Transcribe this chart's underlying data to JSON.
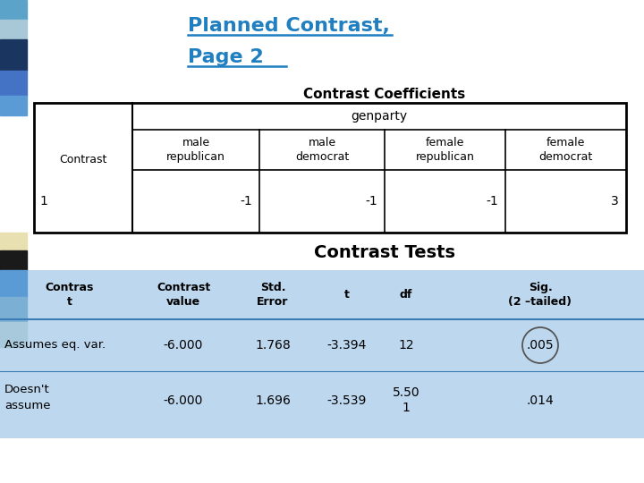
{
  "title_line1": "Planned Contrast,",
  "title_line2": "Page 2",
  "title_color": "#1F7FC0",
  "bg_color": "#FFFFFF",
  "top_bar_colors": [
    "#5BA3C9",
    "#A8C8D8",
    "#1A3560",
    "#4472C4",
    "#5B9BD5"
  ],
  "top_bar_heights": [
    22,
    22,
    35,
    28,
    22
  ],
  "bot_bar_colors": [
    "#E8E0B0",
    "#1A1A1A",
    "#5B9BD5",
    "#7BAFD4",
    "#A8C8DC"
  ],
  "bot_bar_heights": [
    20,
    22,
    30,
    28,
    28
  ],
  "coeff_table_title": "Contrast Coefficients",
  "coeff_subheader": "genparty",
  "coeff_sub_labels": [
    "male\nrepublican",
    "male\ndemocrat",
    "female\nrepublican",
    "female\ndemocrat"
  ],
  "coeff_row": [
    "1",
    "-1",
    "-1",
    "-1",
    "3"
  ],
  "tests_title": "Contrast Tests",
  "tests_headers": [
    "Contras\nt",
    "Contrast\nvalue",
    "Std.\nError",
    "t",
    "df",
    "Sig.\n(2 –tailed)"
  ],
  "tests_row1_label": "Assumes eq. var.",
  "tests_row1": [
    "-6.000",
    "1.768",
    "-3.394",
    "12",
    ".005"
  ],
  "tests_row2_label": "Doesn't\nassume",
  "tests_row2": [
    "-6.000",
    "1.696",
    "-3.539",
    "5.50\n1",
    ".014"
  ],
  "table_bg": "#BDD7EE",
  "table_line_color": "#5B9BD5"
}
